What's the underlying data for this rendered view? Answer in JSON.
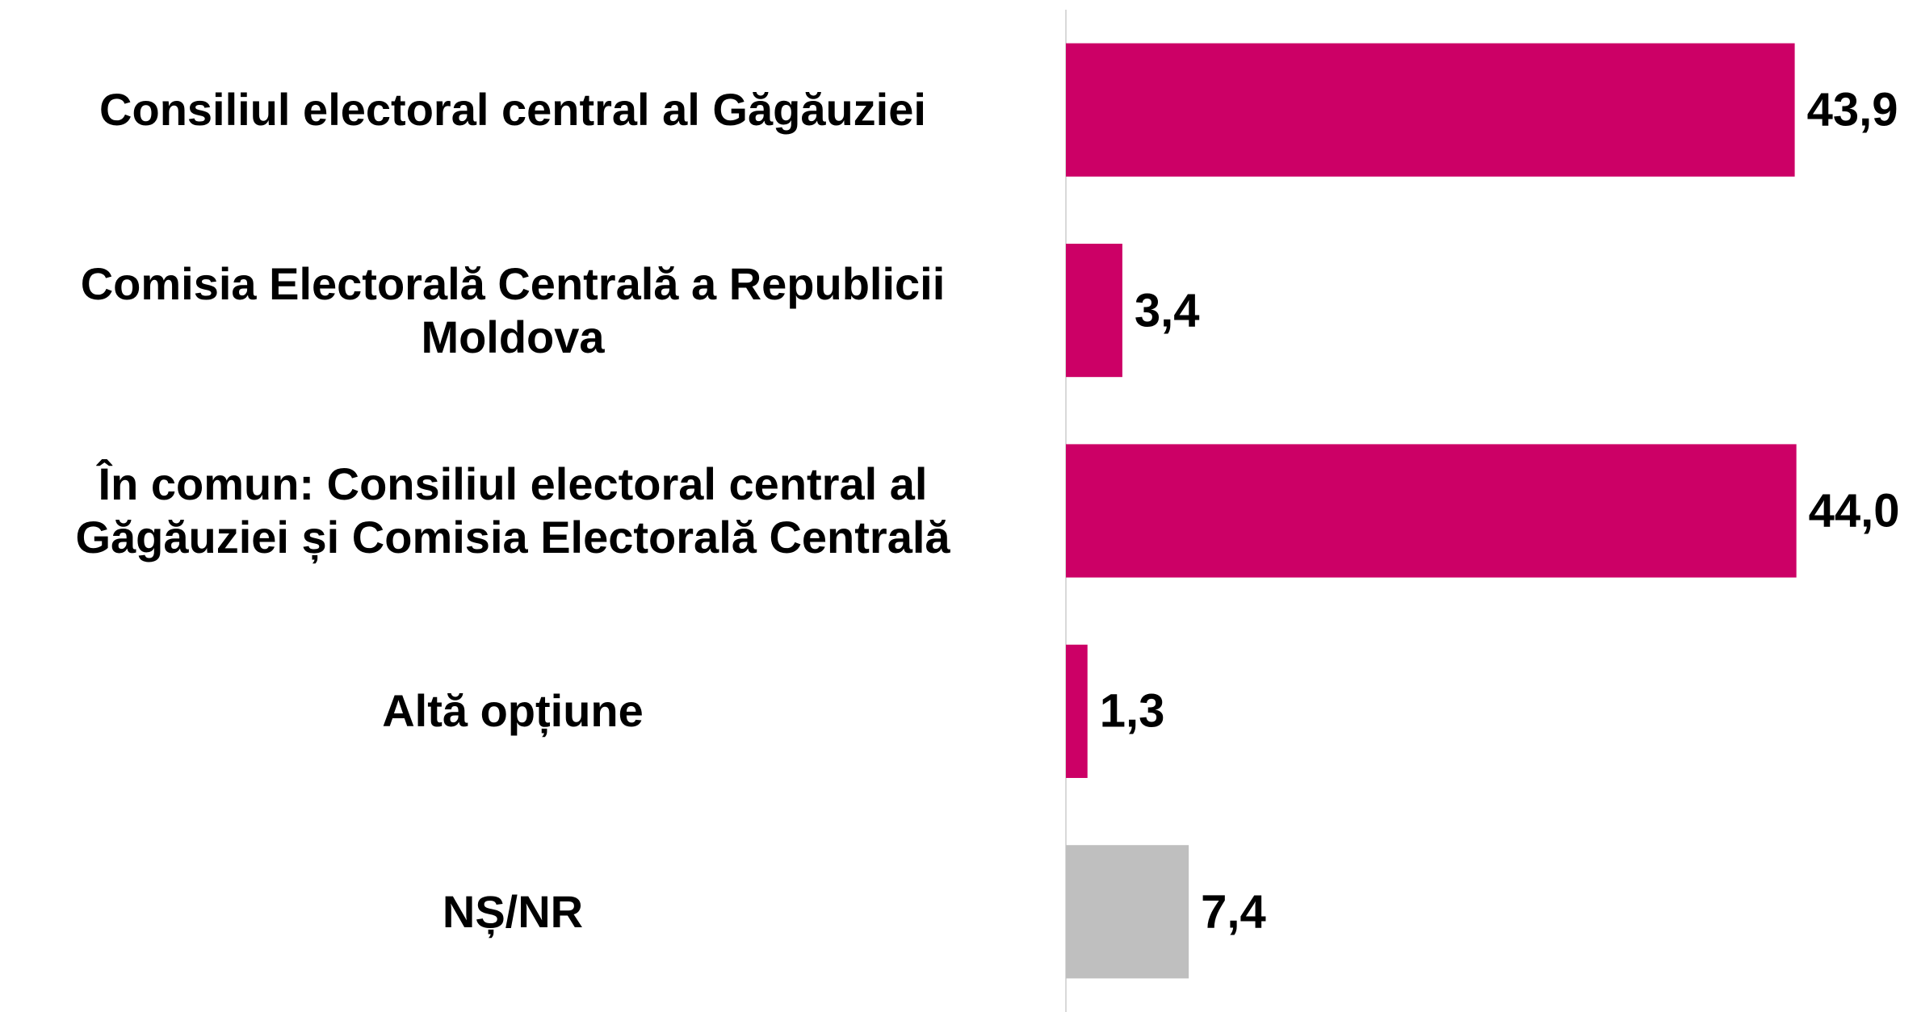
{
  "chart_data": {
    "type": "bar",
    "orientation": "horizontal",
    "categories": [
      "Consiliul electoral central al Găgăuziei",
      "Comisia Electorală Centrală a Republicii Moldova",
      "În comun: Consiliul electoral central al Găgăuziei și Comisia Electorală Centrală",
      "Altă opțiune",
      "NȘ/NR"
    ],
    "values": [
      43.9,
      3.4,
      44.0,
      1.3,
      7.4
    ],
    "value_labels": [
      "43,9",
      "3,4",
      "44,0",
      "1,3",
      "7,4"
    ],
    "colors": [
      "#cc0066",
      "#cc0066",
      "#cc0066",
      "#cc0066",
      "#bfbfbf"
    ],
    "xlim": [
      0,
      50
    ]
  }
}
